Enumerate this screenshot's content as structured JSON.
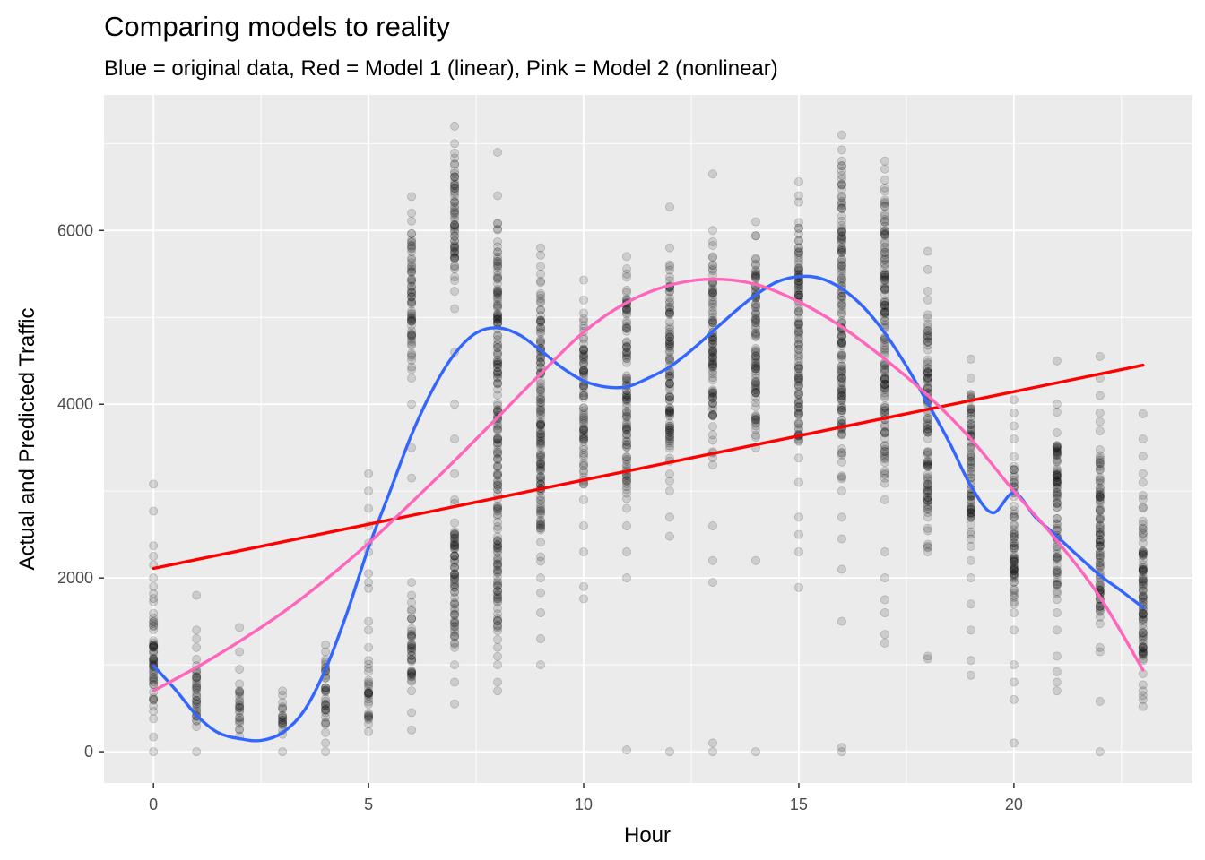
{
  "chart_data": {
    "type": "scatter",
    "title": "Comparing models to reality",
    "subtitle": "Blue = original data, Red = Model 1 (linear), Pink = Model 2 (nonlinear)",
    "xlabel": "Hour",
    "ylabel": "Actual and Predicted Traffic",
    "xlim": [
      -1.15,
      24.15
    ],
    "ylim": [
      -360,
      7560
    ],
    "x_ticks": [
      0,
      5,
      10,
      15,
      20
    ],
    "y_ticks": [
      0,
      2000,
      4000,
      6000
    ],
    "grid": true,
    "point_color": "#000000",
    "point_opacity": 0.13,
    "panel_background": "#ebebeb",
    "point_columns": [
      {
        "hour": 0,
        "dense": [
          380,
          1900
        ],
        "sparse": [
          0,
          170,
          2000,
          2150,
          2250,
          2370,
          2770,
          3080
        ]
      },
      {
        "hour": 1,
        "dense": [
          290,
          1200
        ],
        "sparse": [
          0,
          1300,
          1400,
          1800
        ]
      },
      {
        "hour": 2,
        "dense": [
          180,
          780
        ],
        "sparse": [
          950,
          1150,
          1430
        ]
      },
      {
        "hour": 3,
        "dense": [
          200,
          650
        ],
        "sparse": [
          0,
          700
        ]
      },
      {
        "hour": 4,
        "dense": [
          220,
          1150
        ],
        "sparse": [
          0,
          100,
          1230
        ]
      },
      {
        "hour": 5,
        "dense": [
          320,
          1050
        ],
        "sparse": [
          230,
          1200,
          1400,
          1500,
          1880,
          1950,
          2050,
          2300,
          2400,
          2600,
          2800,
          3000,
          3200
        ]
      },
      {
        "hour": 6,
        "dense": [
          700,
          1800
        ],
        "sparse": [
          250,
          450,
          1950,
          3150,
          3500,
          4000,
          4300,
          6390
        ]
      },
      {
        "hour": 6,
        "dense": [
          4400,
          6200
        ],
        "sparse": []
      },
      {
        "hour": 7,
        "dense": [
          1000,
          2900
        ],
        "sparse": [
          550,
          800,
          3200,
          3600,
          4000,
          4600,
          5100,
          7200
        ]
      },
      {
        "hour": 7,
        "dense": [
          5300,
          7000
        ],
        "sparse": []
      },
      {
        "hour": 8,
        "dense": [
          1000,
          6400
        ],
        "sparse": [
          700,
          800,
          6900
        ]
      },
      {
        "hour": 9,
        "dense": [
          2000,
          5800
        ],
        "sparse": [
          1000,
          1300,
          1600,
          1830
        ]
      },
      {
        "hour": 10,
        "dense": [
          2900,
          5200
        ],
        "sparse": [
          1760,
          1900,
          2300,
          2600,
          5430
        ]
      },
      {
        "hour": 11,
        "dense": [
          2800,
          5700
        ],
        "sparse": [
          20,
          2000,
          2300,
          2600
        ]
      },
      {
        "hour": 12,
        "dense": [
          3000,
          5800
        ],
        "sparse": [
          0,
          2480,
          2700,
          6270
        ]
      },
      {
        "hour": 13,
        "dense": [
          3300,
          6000
        ],
        "sparse": [
          0,
          100,
          1950,
          2200,
          2600,
          6650
        ]
      },
      {
        "hour": 14,
        "dense": [
          3500,
          6100
        ],
        "sparse": [
          0,
          2200
        ]
      },
      {
        "hour": 15,
        "dense": [
          3100,
          6400
        ],
        "sparse": [
          1890,
          2300,
          2500,
          2700,
          6560
        ]
      },
      {
        "hour": 16,
        "dense": [
          3000,
          7100
        ],
        "sparse": [
          0,
          50,
          1500,
          2100,
          2450,
          2700
        ]
      },
      {
        "hour": 17,
        "dense": [
          2900,
          6800
        ],
        "sparse": [
          1250,
          1350,
          1600,
          1750,
          2000,
          2300
        ]
      },
      {
        "hour": 18,
        "dense": [
          2300,
          5200
        ],
        "sparse": [
          1070,
          1100,
          5300,
          5550,
          5760
        ]
      },
      {
        "hour": 19,
        "dense": [
          2200,
          4300
        ],
        "sparse": [
          880,
          1050,
          1400,
          1700,
          2000,
          4520
        ]
      },
      {
        "hour": 20,
        "dense": [
          1600,
          3600
        ],
        "sparse": [
          100,
          600,
          800,
          1000,
          1400,
          3750,
          3900,
          4050
        ]
      },
      {
        "hour": 21,
        "dense": [
          1600,
          4000
        ],
        "sparse": [
          700,
          800,
          920,
          1100,
          1400,
          4500
        ]
      },
      {
        "hour": 22,
        "dense": [
          1200,
          3800
        ],
        "sparse": [
          0,
          580,
          1150,
          3900,
          4100,
          4300,
          4550
        ]
      },
      {
        "hour": 23,
        "dense": [
          600,
          3100
        ],
        "sparse": [
          520,
          700,
          3200,
          3400,
          3600,
          3890
        ]
      }
    ],
    "series": [
      {
        "color": "#3366ff",
        "x": [
          0,
          0.5,
          1,
          1.5,
          2,
          2.5,
          3,
          3.5,
          4,
          4.5,
          5,
          5.5,
          6,
          6.5,
          7,
          7.5,
          8,
          8.5,
          9,
          9.5,
          10,
          10.5,
          11,
          11.5,
          12,
          12.5,
          13,
          13.5,
          14,
          14.5,
          15,
          15.5,
          16,
          16.5,
          17,
          17.5,
          18,
          18.5,
          19,
          19.5,
          20,
          20.5,
          21,
          21.5,
          22,
          22.5,
          23
        ],
        "y": [
          990,
          720,
          420,
          220,
          150,
          130,
          220,
          470,
          950,
          1600,
          2350,
          3000,
          3650,
          4180,
          4580,
          4820,
          4880,
          4800,
          4620,
          4420,
          4270,
          4200,
          4200,
          4300,
          4430,
          4620,
          4840,
          5060,
          5260,
          5410,
          5470,
          5450,
          5330,
          5120,
          4820,
          4440,
          4010,
          3560,
          3060,
          2750,
          2980,
          2700,
          2480,
          2250,
          2030,
          1850,
          1660
        ]
      },
      {
        "color": "#ff0000",
        "x": [
          0,
          23
        ],
        "y": [
          2110,
          4450
        ]
      },
      {
        "color": "#ff66bb",
        "x": [
          0,
          1,
          2,
          3,
          4,
          5,
          6,
          7,
          8,
          9,
          10,
          11,
          12,
          13,
          14,
          15,
          16,
          17,
          18,
          19,
          20,
          21,
          22,
          23
        ],
        "y": [
          700,
          970,
          1270,
          1600,
          1980,
          2400,
          2870,
          3350,
          3850,
          4350,
          4830,
          5170,
          5370,
          5440,
          5380,
          5180,
          4890,
          4520,
          4100,
          3600,
          3000,
          2430,
          1780,
          940
        ]
      }
    ]
  }
}
